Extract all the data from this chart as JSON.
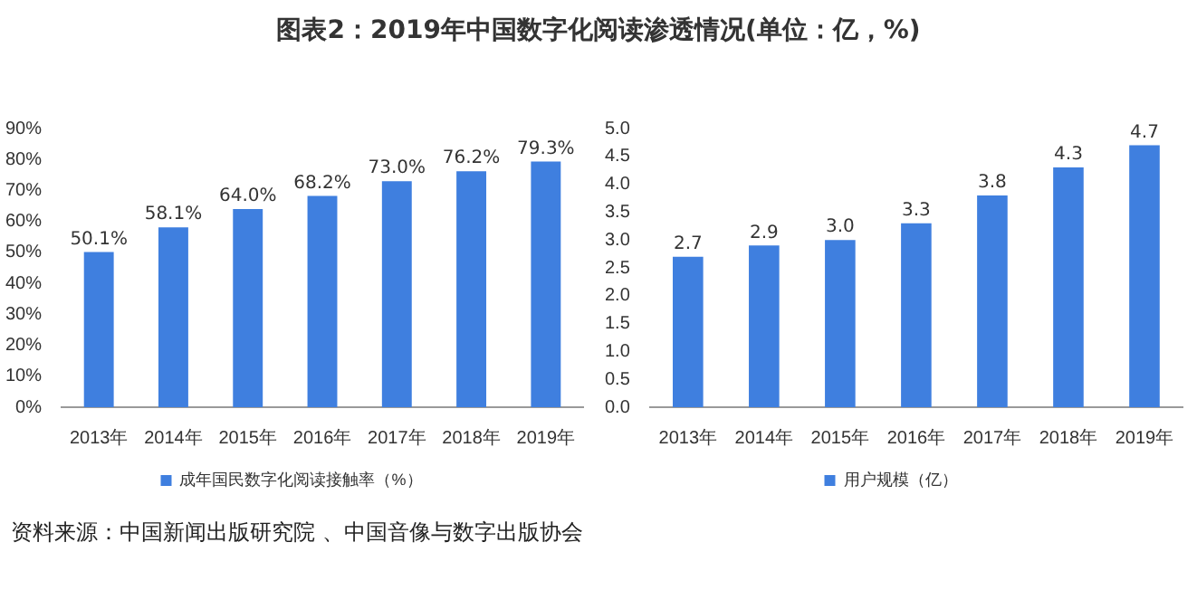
{
  "chart_data": [
    {
      "type": "bar",
      "title": "图表2：2019年中国数字化阅读渗透情况(单位：亿，%)",
      "categories": [
        "2013年",
        "2014年",
        "2015年",
        "2016年",
        "2017年",
        "2018年",
        "2019年"
      ],
      "series": [
        {
          "name": "成年国民数字化阅读接触率（%）",
          "color": "#3f7fdf",
          "values": [
            50.1,
            58.1,
            64.0,
            68.2,
            73.0,
            76.2,
            79.3
          ],
          "value_labels": [
            "50.1%",
            "58.1%",
            "64.0%",
            "68.2%",
            "73.0%",
            "76.2%",
            "79.3%"
          ]
        }
      ],
      "ylim": [
        0,
        90
      ],
      "yticks": [
        {
          "value": 0,
          "label": "0%"
        },
        {
          "value": 10,
          "label": "10%"
        },
        {
          "value": 20,
          "label": "20%"
        },
        {
          "value": 30,
          "label": "30%"
        },
        {
          "value": 40,
          "label": "40%"
        },
        {
          "value": 50,
          "label": "50%"
        },
        {
          "value": 60,
          "label": "60%"
        },
        {
          "value": 70,
          "label": "70%"
        },
        {
          "value": 80,
          "label": "80%"
        },
        {
          "value": 90,
          "label": "90%"
        }
      ],
      "grid": false,
      "legend": "bottom"
    },
    {
      "type": "bar",
      "categories": [
        "2013年",
        "2014年",
        "2015年",
        "2016年",
        "2017年",
        "2018年",
        "2019年"
      ],
      "series": [
        {
          "name": "用户规模（亿）",
          "color": "#3f7fdf",
          "values": [
            2.7,
            2.9,
            3.0,
            3.3,
            3.8,
            4.3,
            4.7
          ],
          "value_labels": [
            "2.7",
            "2.9",
            "3.0",
            "3.3",
            "3.8",
            "4.3",
            "4.7"
          ]
        }
      ],
      "ylim": [
        0,
        5
      ],
      "yticks": [
        {
          "value": 0,
          "label": "0.0"
        },
        {
          "value": 0.5,
          "label": "0.5"
        },
        {
          "value": 1,
          "label": "1.0"
        },
        {
          "value": 1.5,
          "label": "1.5"
        },
        {
          "value": 2,
          "label": "2.0"
        },
        {
          "value": 2.5,
          "label": "2.5"
        },
        {
          "value": 3,
          "label": "3.0"
        },
        {
          "value": 3.5,
          "label": "3.5"
        },
        {
          "value": 4,
          "label": "4.0"
        },
        {
          "value": 4.5,
          "label": "4.5"
        },
        {
          "value": 5,
          "label": "5.0"
        }
      ],
      "grid": false,
      "legend": "bottom",
      "annotations": [
        "资料来源：中国新闻出版研究院 、中国音像与数字出版协会"
      ]
    }
  ]
}
